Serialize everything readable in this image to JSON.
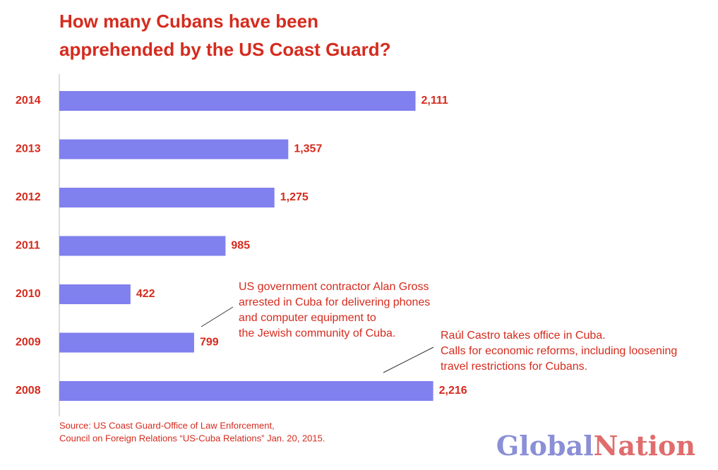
{
  "chart_data": {
    "type": "bar",
    "orientation": "horizontal",
    "title_lines": [
      "How many Cubans have been",
      "apprehended by the US Coast Guard?"
    ],
    "categories": [
      "2014",
      "2013",
      "2012",
      "2011",
      "2010",
      "2009",
      "2008"
    ],
    "values": [
      2111,
      1357,
      1275,
      985,
      422,
      799,
      2216
    ],
    "value_labels": [
      "2,111",
      "1,357",
      "1,275",
      "985",
      "422",
      "799",
      "2,216"
    ],
    "color": "#8080ee",
    "annotations": [
      {
        "lines": [
          "US government contractor Alan Gross",
          "arrested in Cuba for delivering phones",
          "and computer equipment to",
          "the Jewish community of Cuba."
        ]
      },
      {
        "lines": [
          "Raúl Castro takes office in Cuba.",
          "Calls for economic reforms, including loosening",
          "travel restrictions for Cubans."
        ]
      }
    ],
    "source_lines": [
      "Source: US Coast Guard-Office of Law Enforcement,",
      "Council on Foreign Relations “US-Cuba Relations” Jan. 20, 2015."
    ],
    "logo": [
      "Global",
      "Nation"
    ]
  }
}
